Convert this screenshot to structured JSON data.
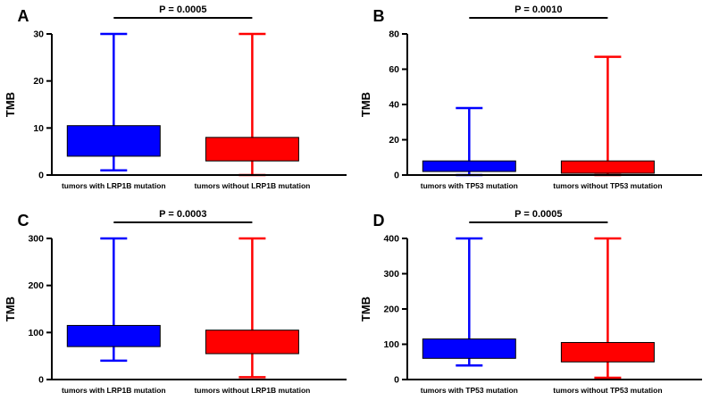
{
  "figure": {
    "background": "#FFFFFF",
    "axis_color": "#000000",
    "text_color": "#000000"
  },
  "chart_data": [
    {
      "type": "box",
      "panel_label": "A",
      "p_label": "P = 0.0005",
      "ylabel": "TMB",
      "ylim": [
        0,
        30
      ],
      "yticks": [
        0,
        10,
        20,
        30
      ],
      "categories": [
        "tumors with LRP1B mutation",
        "tumors without LRP1B mutation"
      ],
      "series": [
        {
          "name": "tumors with LRP1B mutation",
          "color": "#0000FF",
          "whisker_min": 1,
          "q1": 4,
          "q3": 10.5,
          "whisker_max": 30
        },
        {
          "name": "tumors without LRP1B mutation",
          "color": "#FF0000",
          "whisker_min": 0,
          "q1": 3,
          "q3": 8,
          "whisker_max": 30
        }
      ]
    },
    {
      "type": "box",
      "panel_label": "B",
      "p_label": "P = 0.0010",
      "ylabel": "TMB",
      "ylim": [
        0,
        80
      ],
      "yticks": [
        0,
        20,
        40,
        60,
        80
      ],
      "categories": [
        "tumors with TP53 mutation",
        "tumors without TP53 mutation"
      ],
      "series": [
        {
          "name": "tumors with TP53 mutation",
          "color": "#0000FF",
          "whisker_min": 0,
          "q1": 2,
          "q3": 8,
          "whisker_max": 38
        },
        {
          "name": "tumors without TP53 mutation",
          "color": "#FF0000",
          "whisker_min": 0,
          "q1": 1,
          "q3": 8,
          "whisker_max": 67
        }
      ]
    },
    {
      "type": "box",
      "panel_label": "C",
      "p_label": "P = 0.0003",
      "ylabel": "TMB",
      "ylim": [
        0,
        300
      ],
      "yticks": [
        0,
        100,
        200,
        300
      ],
      "categories": [
        "tumors with LRP1B mutation",
        "tumors without LRP1B mutation"
      ],
      "series": [
        {
          "name": "tumors with LRP1B mutation",
          "color": "#0000FF",
          "whisker_min": 40,
          "q1": 70,
          "q3": 115,
          "whisker_max": 300
        },
        {
          "name": "tumors without LRP1B mutation",
          "color": "#FF0000",
          "whisker_min": 5,
          "q1": 55,
          "q3": 105,
          "whisker_max": 300
        }
      ]
    },
    {
      "type": "box",
      "panel_label": "D",
      "p_label": "P = 0.0005",
      "ylabel": "TMB",
      "ylim": [
        0,
        400
      ],
      "yticks": [
        0,
        100,
        200,
        300,
        400
      ],
      "categories": [
        "tumors with TP53 mutation",
        "tumors without TP53 mutation"
      ],
      "series": [
        {
          "name": "tumors with TP53 mutation",
          "color": "#0000FF",
          "whisker_min": 40,
          "q1": 60,
          "q3": 115,
          "whisker_max": 400
        },
        {
          "name": "tumors without TP53 mutation",
          "color": "#FF0000",
          "whisker_min": 5,
          "q1": 50,
          "q3": 105,
          "whisker_max": 400
        }
      ]
    }
  ]
}
